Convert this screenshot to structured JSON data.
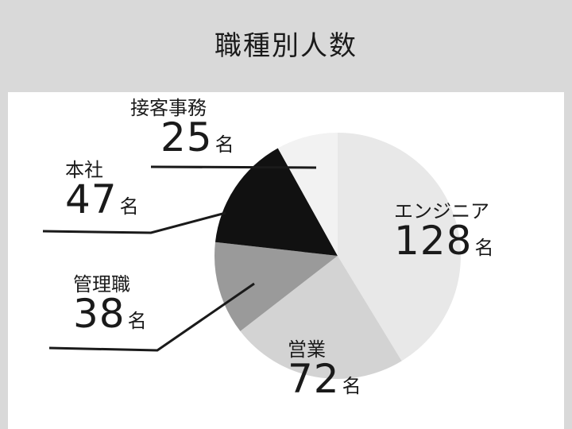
{
  "title": "職種別人数",
  "unit": "名",
  "colors": {
    "background": "#d9d9d9",
    "panel": "#ffffff",
    "leader_line": "#1a1a1a",
    "slices": [
      "#e8e8e8",
      "#d3d3d3",
      "#9a9a9a",
      "#111111",
      "#f2f2f2"
    ]
  },
  "chart_data": {
    "type": "pie",
    "title": "職種別人数",
    "unit": "名",
    "start": "top, clockwise",
    "categories": [
      "エンジニア",
      "営業",
      "管理職",
      "本社",
      "接客事務"
    ],
    "values": [
      128,
      72,
      38,
      47,
      25
    ],
    "legend": "none (direct labels with leader lines)"
  }
}
